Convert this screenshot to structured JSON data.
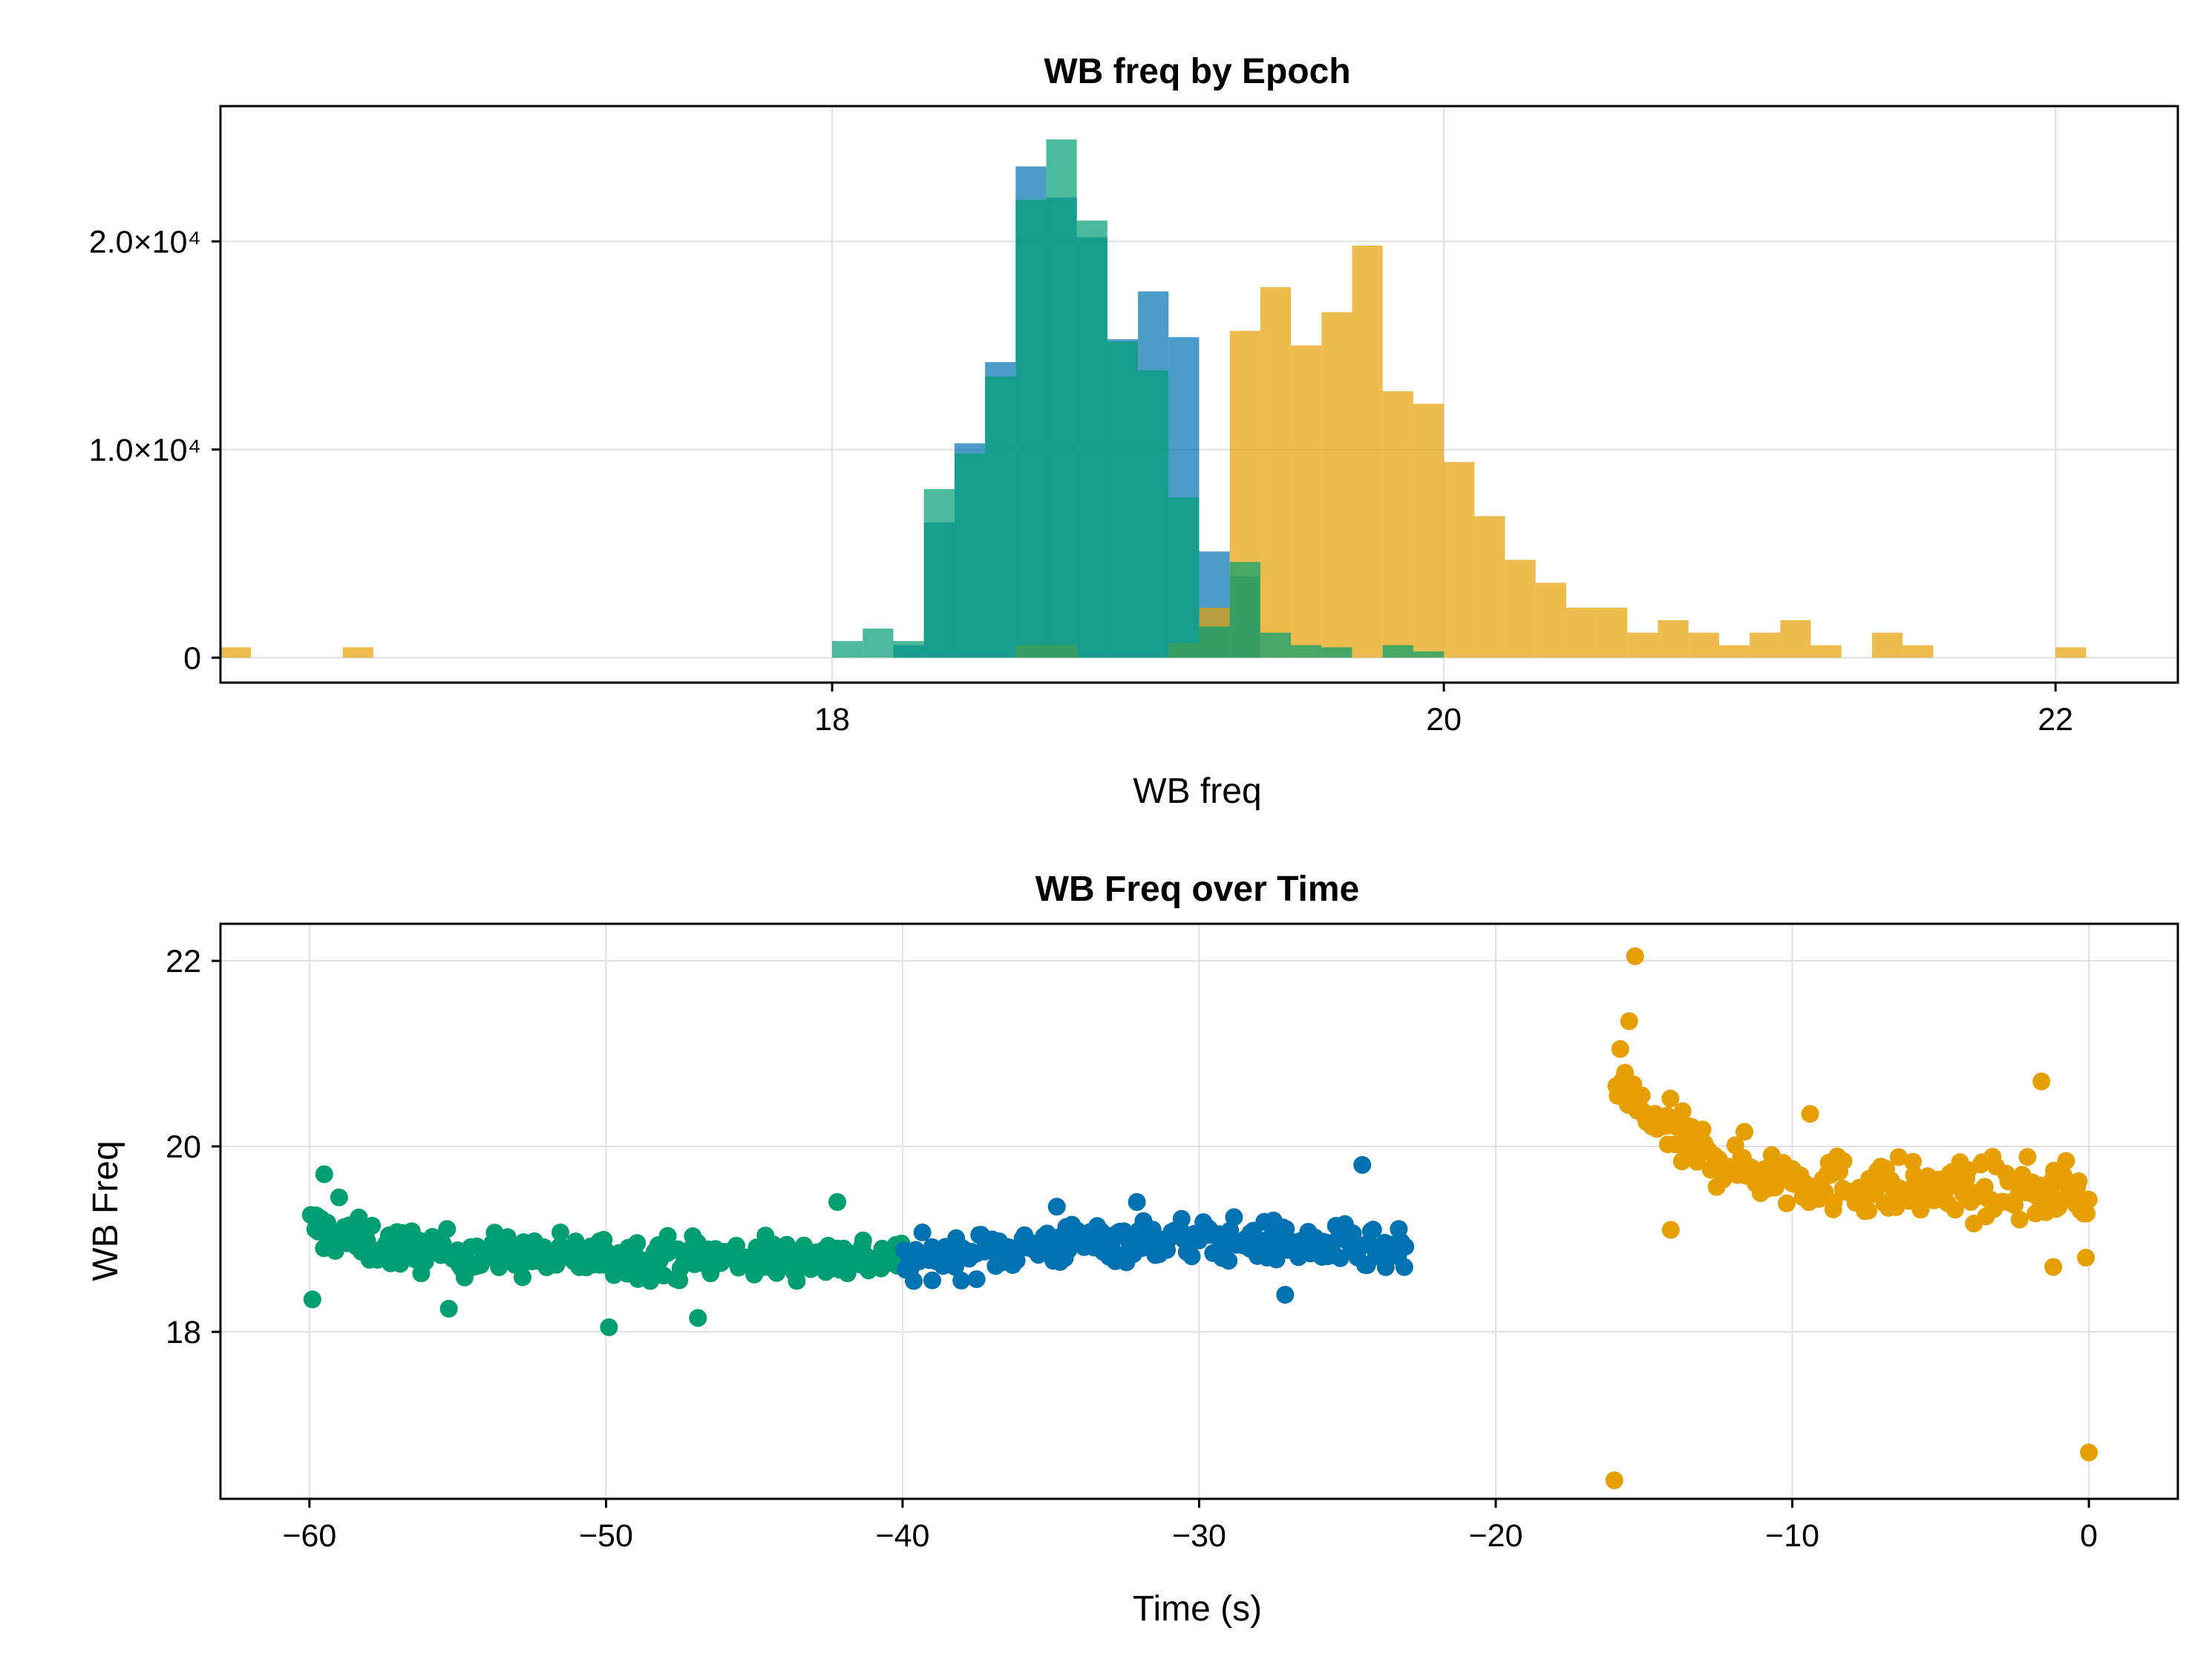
{
  "chart_data": [
    {
      "type": "histogram",
      "title": "WB freq by Epoch",
      "xlabel": "WB freq",
      "ylabel": "",
      "xlim": [
        16.0,
        22.4
      ],
      "ylim": [
        -1200,
        26500
      ],
      "xticks": [
        18,
        20,
        22
      ],
      "xtick_labels": [
        "18",
        "20",
        "22"
      ],
      "yticks": [
        0,
        10000,
        20000
      ],
      "ytick_labels": [
        "0",
        "1.0×10⁴",
        "2.0×10⁴"
      ],
      "grid": true,
      "legend": "none",
      "bin_width": 0.1,
      "series": [
        {
          "color": "#0072b2",
          "opacity": 0.7,
          "bins": [
            [
              18.2,
              600
            ],
            [
              18.3,
              6500
            ],
            [
              18.4,
              10300
            ],
            [
              18.5,
              14200
            ],
            [
              18.6,
              23600
            ],
            [
              18.7,
              22100
            ],
            [
              18.8,
              20200
            ],
            [
              18.9,
              15300
            ],
            [
              19.0,
              17600
            ],
            [
              19.1,
              15400
            ],
            [
              19.2,
              5100
            ],
            [
              19.3,
              3900
            ]
          ]
        },
        {
          "color": "#e69f00",
          "opacity": 0.7,
          "bins": [
            [
              16.0,
              500
            ],
            [
              16.4,
              500
            ],
            [
              18.6,
              600
            ],
            [
              18.7,
              600
            ],
            [
              19.1,
              700
            ],
            [
              19.2,
              2400
            ],
            [
              19.3,
              15700
            ],
            [
              19.4,
              17800
            ],
            [
              19.5,
              15000
            ],
            [
              19.6,
              16600
            ],
            [
              19.7,
              19800
            ],
            [
              19.8,
              12800
            ],
            [
              19.9,
              12200
            ],
            [
              20.0,
              9400
            ],
            [
              20.1,
              6800
            ],
            [
              20.2,
              4700
            ],
            [
              20.3,
              3600
            ],
            [
              20.4,
              2400
            ],
            [
              20.5,
              2400
            ],
            [
              20.6,
              1200
            ],
            [
              20.7,
              1800
            ],
            [
              20.8,
              1200
            ],
            [
              20.9,
              600
            ],
            [
              21.0,
              1200
            ],
            [
              21.1,
              1800
            ],
            [
              21.2,
              600
            ],
            [
              21.4,
              1200
            ],
            [
              21.5,
              600
            ],
            [
              22.0,
              500
            ]
          ]
        },
        {
          "color": "#009e73",
          "opacity": 0.7,
          "bins": [
            [
              18.0,
              800
            ],
            [
              18.1,
              1400
            ],
            [
              18.2,
              800
            ],
            [
              18.3,
              8100
            ],
            [
              18.4,
              9800
            ],
            [
              18.5,
              13500
            ],
            [
              18.6,
              22000
            ],
            [
              18.7,
              24900
            ],
            [
              18.8,
              21000
            ],
            [
              18.9,
              15200
            ],
            [
              19.0,
              13800
            ],
            [
              19.1,
              7700
            ],
            [
              19.2,
              1500
            ],
            [
              19.3,
              4600
            ],
            [
              19.4,
              1200
            ],
            [
              19.5,
              600
            ],
            [
              19.6,
              500
            ],
            [
              19.8,
              600
            ],
            [
              19.9,
              300
            ]
          ]
        }
      ]
    },
    {
      "type": "scatter",
      "title": "WB Freq over Time",
      "xlabel": "Time (s)",
      "ylabel": "WB Freq",
      "xlim": [
        -63,
        3
      ],
      "ylim": [
        16.2,
        22.4
      ],
      "xticks": [
        -60,
        -50,
        -40,
        -30,
        -20,
        -10,
        0
      ],
      "xtick_labels": [
        "−60",
        "−50",
        "−40",
        "−30",
        "−20",
        "−10",
        "0"
      ],
      "yticks": [
        18,
        20,
        22
      ],
      "ytick_labels": [
        "18",
        "20",
        "22"
      ],
      "grid": true,
      "legend": "none",
      "series": [
        {
          "color": "#009e73",
          "x_range": [
            -60,
            -40
          ],
          "approx_level": 18.8,
          "sample_points": [
            [
              -59.9,
              18.35
            ],
            [
              -59.5,
              19.7
            ],
            [
              -59.0,
              19.45
            ],
            [
              -55.3,
              18.25
            ],
            [
              -49.9,
              18.05
            ],
            [
              -46.9,
              18.15
            ],
            [
              -42.2,
              19.4
            ]
          ]
        },
        {
          "color": "#0072b2",
          "x_range": [
            -40,
            -23
          ],
          "approx_level": 18.9,
          "sample_points": [
            [
              -34.8,
              19.35
            ],
            [
              -32.1,
              19.4
            ],
            [
              -27.1,
              18.4
            ],
            [
              -24.5,
              19.8
            ],
            [
              -23.2,
              18.9
            ]
          ]
        },
        {
          "color": "#e69f00",
          "x_range": [
            -16,
            0
          ],
          "approx_level": 19.6,
          "sample_points": [
            [
              -16.0,
              16.4
            ],
            [
              -15.3,
              22.05
            ],
            [
              -15.5,
              21.35
            ],
            [
              -15.8,
              21.05
            ],
            [
              -14.1,
              19.1
            ],
            [
              -9.4,
              20.35
            ],
            [
              -8.6,
              19.4
            ],
            [
              -1.6,
              20.7
            ],
            [
              -1.2,
              18.7
            ],
            [
              -0.1,
              18.8
            ],
            [
              0.0,
              16.7
            ]
          ]
        }
      ]
    }
  ]
}
